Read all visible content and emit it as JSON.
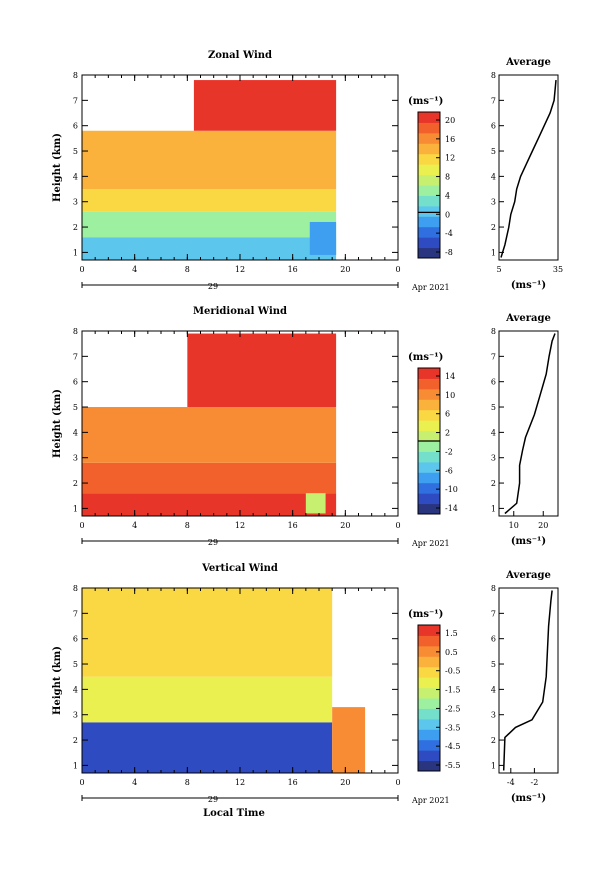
{
  "date_label": "Apr 2021",
  "day_label": "29",
  "xlabel": "Local Time",
  "chart_data": [
    {
      "type": "heatmap",
      "title": "Zonal Wind",
      "ylabel": "Height (km)",
      "xlabel": "Local Time",
      "xlim": [
        0,
        24
      ],
      "x_ticks": [
        "0",
        "4",
        "8",
        "12",
        "16",
        "20",
        "0"
      ],
      "ylim": [
        0.7,
        8
      ],
      "y_ticks": [
        "1",
        "2",
        "3",
        "4",
        "5",
        "6",
        "7",
        "8"
      ],
      "colorbar": {
        "unit": "(ms⁻¹)",
        "ticks": [
          "20",
          "16",
          "12",
          "8",
          "4",
          "0",
          "-4",
          "-8"
        ],
        "range": [
          -10,
          22
        ],
        "zero_line": 0
      },
      "colors": [
        "#2a3580",
        "#2e4bc2",
        "#2f6fe0",
        "#3e9ef0",
        "#5dc6ec",
        "#74e0cc",
        "#9cf0a0",
        "#c8f070",
        "#eaf050",
        "#fad844",
        "#fbb23c",
        "#f88c34",
        "#f2602c",
        "#e8352a"
      ],
      "regions": [
        {
          "t0": 0,
          "t1": 19.3,
          "h0": 0.7,
          "h1": 1.6,
          "value": 1
        },
        {
          "t0": 0,
          "t1": 19.3,
          "h0": 1.6,
          "h1": 2.6,
          "value": 5
        },
        {
          "t0": 0,
          "t1": 19.3,
          "h0": 2.6,
          "h1": 3.5,
          "value": 11
        },
        {
          "t0": 0,
          "t1": 19.3,
          "h0": 3.5,
          "h1": 5.8,
          "value": 14
        },
        {
          "t0": 8.5,
          "t1": 19.3,
          "h0": 5.8,
          "h1": 7.8,
          "value": 20
        },
        {
          "t0": 17.3,
          "t1": 19.3,
          "h0": 0.9,
          "h1": 2.2,
          "value": -2
        }
      ],
      "average_profile": {
        "title": "Average",
        "xlabel": "(ms⁻¹)",
        "xlim": [
          5,
          35
        ],
        "x_ticks": [
          "5",
          "35"
        ],
        "x": [
          6,
          8,
          10,
          11,
          13,
          14,
          16,
          19,
          22,
          25,
          28,
          31,
          33,
          34
        ],
        "y": [
          0.8,
          1.3,
          2.0,
          2.5,
          3.0,
          3.5,
          4.0,
          4.5,
          5.0,
          5.5,
          6.0,
          6.5,
          7.0,
          7.8
        ]
      }
    },
    {
      "type": "heatmap",
      "title": "Meridional Wind",
      "ylabel": "Height (km)",
      "xlabel": "Local Time",
      "xlim": [
        0,
        24
      ],
      "x_ticks": [
        "0",
        "4",
        "8",
        "12",
        "16",
        "20",
        "0"
      ],
      "ylim": [
        0.7,
        8
      ],
      "y_ticks": [
        "1",
        "2",
        "3",
        "4",
        "5",
        "6",
        "7",
        "8"
      ],
      "colorbar": {
        "unit": "(ms⁻¹)",
        "ticks": [
          "14",
          "10",
          "6",
          "2",
          "-2",
          "-6",
          "-10",
          "-14"
        ],
        "range": [
          -16,
          16
        ],
        "zero_line": 0
      },
      "colors": [
        "#2a3580",
        "#2e4bc2",
        "#2f6fe0",
        "#3e9ef0",
        "#5dc6ec",
        "#74e0cc",
        "#9cf0a0",
        "#c8f070",
        "#eaf050",
        "#fad844",
        "#fbb23c",
        "#f88c34",
        "#f2602c",
        "#e8352a"
      ],
      "regions": [
        {
          "t0": 0,
          "t1": 19.3,
          "h0": 0.7,
          "h1": 1.6,
          "value": 16
        },
        {
          "t0": 0,
          "t1": 19.3,
          "h0": 1.6,
          "h1": 2.8,
          "value": 12
        },
        {
          "t0": 0,
          "t1": 19.3,
          "h0": 2.8,
          "h1": 5.0,
          "value": 11
        },
        {
          "t0": 8.0,
          "t1": 19.3,
          "h0": 5.0,
          "h1": 7.9,
          "value": 16
        },
        {
          "t0": 17.0,
          "t1": 18.5,
          "h0": 0.8,
          "h1": 1.6,
          "value": 0
        }
      ],
      "average_profile": {
        "title": "Average",
        "xlabel": "(ms⁻¹)",
        "xlim": [
          5,
          25
        ],
        "x_ticks": [
          "10",
          "20"
        ],
        "x": [
          7,
          11,
          12,
          12,
          13,
          14,
          17,
          19,
          21,
          22,
          23,
          24
        ],
        "y": [
          0.8,
          1.2,
          2.0,
          2.7,
          3.3,
          3.8,
          4.7,
          5.5,
          6.3,
          7.0,
          7.6,
          7.9
        ]
      }
    },
    {
      "type": "heatmap",
      "title": "Vertical Wind",
      "ylabel": "Height (km)",
      "xlabel": "Local Time",
      "xlim": [
        0,
        24
      ],
      "x_ticks": [
        "0",
        "4",
        "8",
        "12",
        "16",
        "20",
        "0"
      ],
      "ylim": [
        0.7,
        8
      ],
      "y_ticks": [
        "1",
        "2",
        "3",
        "4",
        "5",
        "6",
        "7",
        "8"
      ],
      "colorbar": {
        "unit": "(ms⁻¹)",
        "ticks": [
          "1.5",
          "0.5",
          "-0.5",
          "-1.5",
          "-2.5",
          "-3.5",
          "-4.5",
          "-5.5"
        ],
        "range": [
          -6,
          2
        ],
        "zero_line": null
      },
      "colors": [
        "#2a3580",
        "#2e4bc2",
        "#2f6fe0",
        "#3e9ef0",
        "#5dc6ec",
        "#74e0cc",
        "#9cf0a0",
        "#c8f070",
        "#eaf050",
        "#fad844",
        "#fbb23c",
        "#f88c34",
        "#f2602c",
        "#e8352a"
      ],
      "regions": [
        {
          "t0": 0,
          "t1": 19.0,
          "h0": 0.7,
          "h1": 2.7,
          "value": -5.3
        },
        {
          "t0": 0,
          "t1": 19.0,
          "h0": 2.7,
          "h1": 4.5,
          "value": -1.0
        },
        {
          "t0": 0,
          "t1": 19.0,
          "h0": 4.5,
          "h1": 8.0,
          "value": -0.5
        },
        {
          "t0": 19.0,
          "t1": 21.5,
          "h0": 0.7,
          "h1": 3.3,
          "value": 0.5
        }
      ],
      "average_profile": {
        "title": "Average",
        "xlabel": "(ms⁻¹)",
        "xlim": [
          -5,
          0
        ],
        "x_ticks": [
          "-4",
          "-2"
        ],
        "x": [
          -4.6,
          -4.5,
          -3.6,
          -2.2,
          -1.3,
          -1.0,
          -0.9,
          -0.8,
          -0.6,
          -0.5
        ],
        "y": [
          0.8,
          2.1,
          2.5,
          2.8,
          3.5,
          4.5,
          5.5,
          6.5,
          7.5,
          7.9
        ]
      }
    }
  ]
}
